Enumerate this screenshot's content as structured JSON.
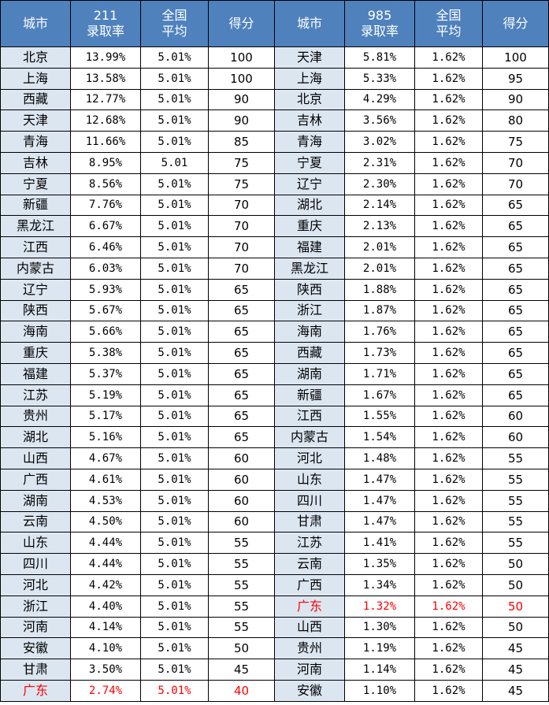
{
  "headers": {
    "left": {
      "city": "城市",
      "rate": [
        "211",
        "录取率"
      ],
      "avg": [
        "全国",
        "平均"
      ],
      "score": "得分"
    },
    "right": {
      "city": "城市",
      "rate": [
        "985",
        "录取率"
      ],
      "avg": [
        "全国",
        "平均"
      ],
      "score": "得分"
    }
  },
  "highlight_color": "#ff0000",
  "header_color": "#4f81bd",
  "city_cell_color": "#dce6f1",
  "rows": [
    {
      "l": {
        "city": "北京",
        "rate": "13.99%",
        "avg": "5.01%",
        "score": "100"
      },
      "r": {
        "city": "天津",
        "rate": "5.81%",
        "avg": "1.62%",
        "score": "100"
      }
    },
    {
      "l": {
        "city": "上海",
        "rate": "13.58%",
        "avg": "5.01%",
        "score": "100"
      },
      "r": {
        "city": "上海",
        "rate": "5.33%",
        "avg": "1.62%",
        "score": "95"
      }
    },
    {
      "l": {
        "city": "西藏",
        "rate": "12.77%",
        "avg": "5.01%",
        "score": "90"
      },
      "r": {
        "city": "北京",
        "rate": "4.29%",
        "avg": "1.62%",
        "score": "90"
      }
    },
    {
      "l": {
        "city": "天津",
        "rate": "12.68%",
        "avg": "5.01%",
        "score": "90"
      },
      "r": {
        "city": "吉林",
        "rate": "3.56%",
        "avg": "1.62%",
        "score": "80"
      }
    },
    {
      "l": {
        "city": "青海",
        "rate": "11.66%",
        "avg": "5.01%",
        "score": "85"
      },
      "r": {
        "city": "青海",
        "rate": "3.02%",
        "avg": "1.62%",
        "score": "75"
      }
    },
    {
      "l": {
        "city": "吉林",
        "rate": "8.95%",
        "avg": "5.01",
        "score": "75"
      },
      "r": {
        "city": "宁夏",
        "rate": "2.31%",
        "avg": "1.62%",
        "score": "70"
      }
    },
    {
      "l": {
        "city": "宁夏",
        "rate": "8.56%",
        "avg": "5.01%",
        "score": "75"
      },
      "r": {
        "city": "辽宁",
        "rate": "2.30%",
        "avg": "1.62%",
        "score": "70"
      }
    },
    {
      "l": {
        "city": "新疆",
        "rate": "7.76%",
        "avg": "5.01%",
        "score": "70"
      },
      "r": {
        "city": "湖北",
        "rate": "2.14%",
        "avg": "1.62%",
        "score": "65"
      }
    },
    {
      "l": {
        "city": "黑龙江",
        "rate": "6.67%",
        "avg": "5.01%",
        "score": "70"
      },
      "r": {
        "city": "重庆",
        "rate": "2.13%",
        "avg": "1.62%",
        "score": "65"
      }
    },
    {
      "l": {
        "city": "江西",
        "rate": "6.46%",
        "avg": "5.01%",
        "score": "70"
      },
      "r": {
        "city": "福建",
        "rate": "2.01%",
        "avg": "1.62%",
        "score": "65"
      }
    },
    {
      "l": {
        "city": "内蒙古",
        "rate": "6.03%",
        "avg": "5.01%",
        "score": "70"
      },
      "r": {
        "city": "黑龙江",
        "rate": "2.01%",
        "avg": "1.62%",
        "score": "65"
      }
    },
    {
      "l": {
        "city": "辽宁",
        "rate": "5.93%",
        "avg": "5.01%",
        "score": "65"
      },
      "r": {
        "city": "陕西",
        "rate": "1.88%",
        "avg": "1.62%",
        "score": "65"
      }
    },
    {
      "l": {
        "city": "陕西",
        "rate": "5.67%",
        "avg": "5.01%",
        "score": "65"
      },
      "r": {
        "city": "浙江",
        "rate": "1.87%",
        "avg": "1.62%",
        "score": "65"
      }
    },
    {
      "l": {
        "city": "海南",
        "rate": "5.66%",
        "avg": "5.01%",
        "score": "65"
      },
      "r": {
        "city": "海南",
        "rate": "1.76%",
        "avg": "1.62%",
        "score": "65"
      }
    },
    {
      "l": {
        "city": "重庆",
        "rate": "5.38%",
        "avg": "5.01%",
        "score": "65"
      },
      "r": {
        "city": "西藏",
        "rate": "1.73%",
        "avg": "1.62%",
        "score": "65"
      }
    },
    {
      "l": {
        "city": "福建",
        "rate": "5.37%",
        "avg": "5.01%",
        "score": "65"
      },
      "r": {
        "city": "湖南",
        "rate": "1.71%",
        "avg": "1.62%",
        "score": "65"
      }
    },
    {
      "l": {
        "city": "江苏",
        "rate": "5.19%",
        "avg": "5.01%",
        "score": "65"
      },
      "r": {
        "city": "新疆",
        "rate": "1.67%",
        "avg": "1.62%",
        "score": "65"
      }
    },
    {
      "l": {
        "city": "贵州",
        "rate": "5.17%",
        "avg": "5.01%",
        "score": "65"
      },
      "r": {
        "city": "江西",
        "rate": "1.55%",
        "avg": "1.62%",
        "score": "60"
      }
    },
    {
      "l": {
        "city": "湖北",
        "rate": "5.16%",
        "avg": "5.01%",
        "score": "65"
      },
      "r": {
        "city": "内蒙古",
        "rate": "1.54%",
        "avg": "1.62%",
        "score": "60"
      }
    },
    {
      "l": {
        "city": "山西",
        "rate": "4.67%",
        "avg": "5.01%",
        "score": "60"
      },
      "r": {
        "city": "河北",
        "rate": "1.48%",
        "avg": "1.62%",
        "score": "55"
      }
    },
    {
      "l": {
        "city": "广西",
        "rate": "4.61%",
        "avg": "5.01%",
        "score": "60"
      },
      "r": {
        "city": "山东",
        "rate": "1.47%",
        "avg": "1.62%",
        "score": "55"
      }
    },
    {
      "l": {
        "city": "湖南",
        "rate": "4.53%",
        "avg": "5.01%",
        "score": "60"
      },
      "r": {
        "city": "四川",
        "rate": "1.47%",
        "avg": "1.62%",
        "score": "55"
      }
    },
    {
      "l": {
        "city": "云南",
        "rate": "4.50%",
        "avg": "5.01%",
        "score": "60"
      },
      "r": {
        "city": "甘肃",
        "rate": "1.47%",
        "avg": "1.62%",
        "score": "55"
      }
    },
    {
      "l": {
        "city": "山东",
        "rate": "4.44%",
        "avg": "5.01%",
        "score": "55"
      },
      "r": {
        "city": "江苏",
        "rate": "1.41%",
        "avg": "1.62%",
        "score": "55"
      }
    },
    {
      "l": {
        "city": "四川",
        "rate": "4.44%",
        "avg": "5.01%",
        "score": "55"
      },
      "r": {
        "city": "云南",
        "rate": "1.35%",
        "avg": "1.62%",
        "score": "50"
      }
    },
    {
      "l": {
        "city": "河北",
        "rate": "4.42%",
        "avg": "5.01%",
        "score": "55"
      },
      "r": {
        "city": "广西",
        "rate": "1.34%",
        "avg": "1.62%",
        "score": "50"
      }
    },
    {
      "l": {
        "city": "浙江",
        "rate": "4.40%",
        "avg": "5.01%",
        "score": "55"
      },
      "r": {
        "city": "广东",
        "rate": "1.32%",
        "avg": "1.62%",
        "score": "50",
        "highlight": true
      }
    },
    {
      "l": {
        "city": "河南",
        "rate": "4.14%",
        "avg": "5.01%",
        "score": "55"
      },
      "r": {
        "city": "山西",
        "rate": "1.30%",
        "avg": "1.62%",
        "score": "50"
      }
    },
    {
      "l": {
        "city": "安徽",
        "rate": "4.10%",
        "avg": "5.01%",
        "score": "50"
      },
      "r": {
        "city": "贵州",
        "rate": "1.19%",
        "avg": "1.62%",
        "score": "45"
      }
    },
    {
      "l": {
        "city": "甘肃",
        "rate": "3.50%",
        "avg": "5.01%",
        "score": "45"
      },
      "r": {
        "city": "河南",
        "rate": "1.14%",
        "avg": "1.62%",
        "score": "45"
      }
    },
    {
      "l": {
        "city": "广东",
        "rate": "2.74%",
        "avg": "5.01%",
        "score": "40",
        "highlight": true
      },
      "r": {
        "city": "安徽",
        "rate": "1.10%",
        "avg": "1.62%",
        "score": "45"
      }
    }
  ]
}
